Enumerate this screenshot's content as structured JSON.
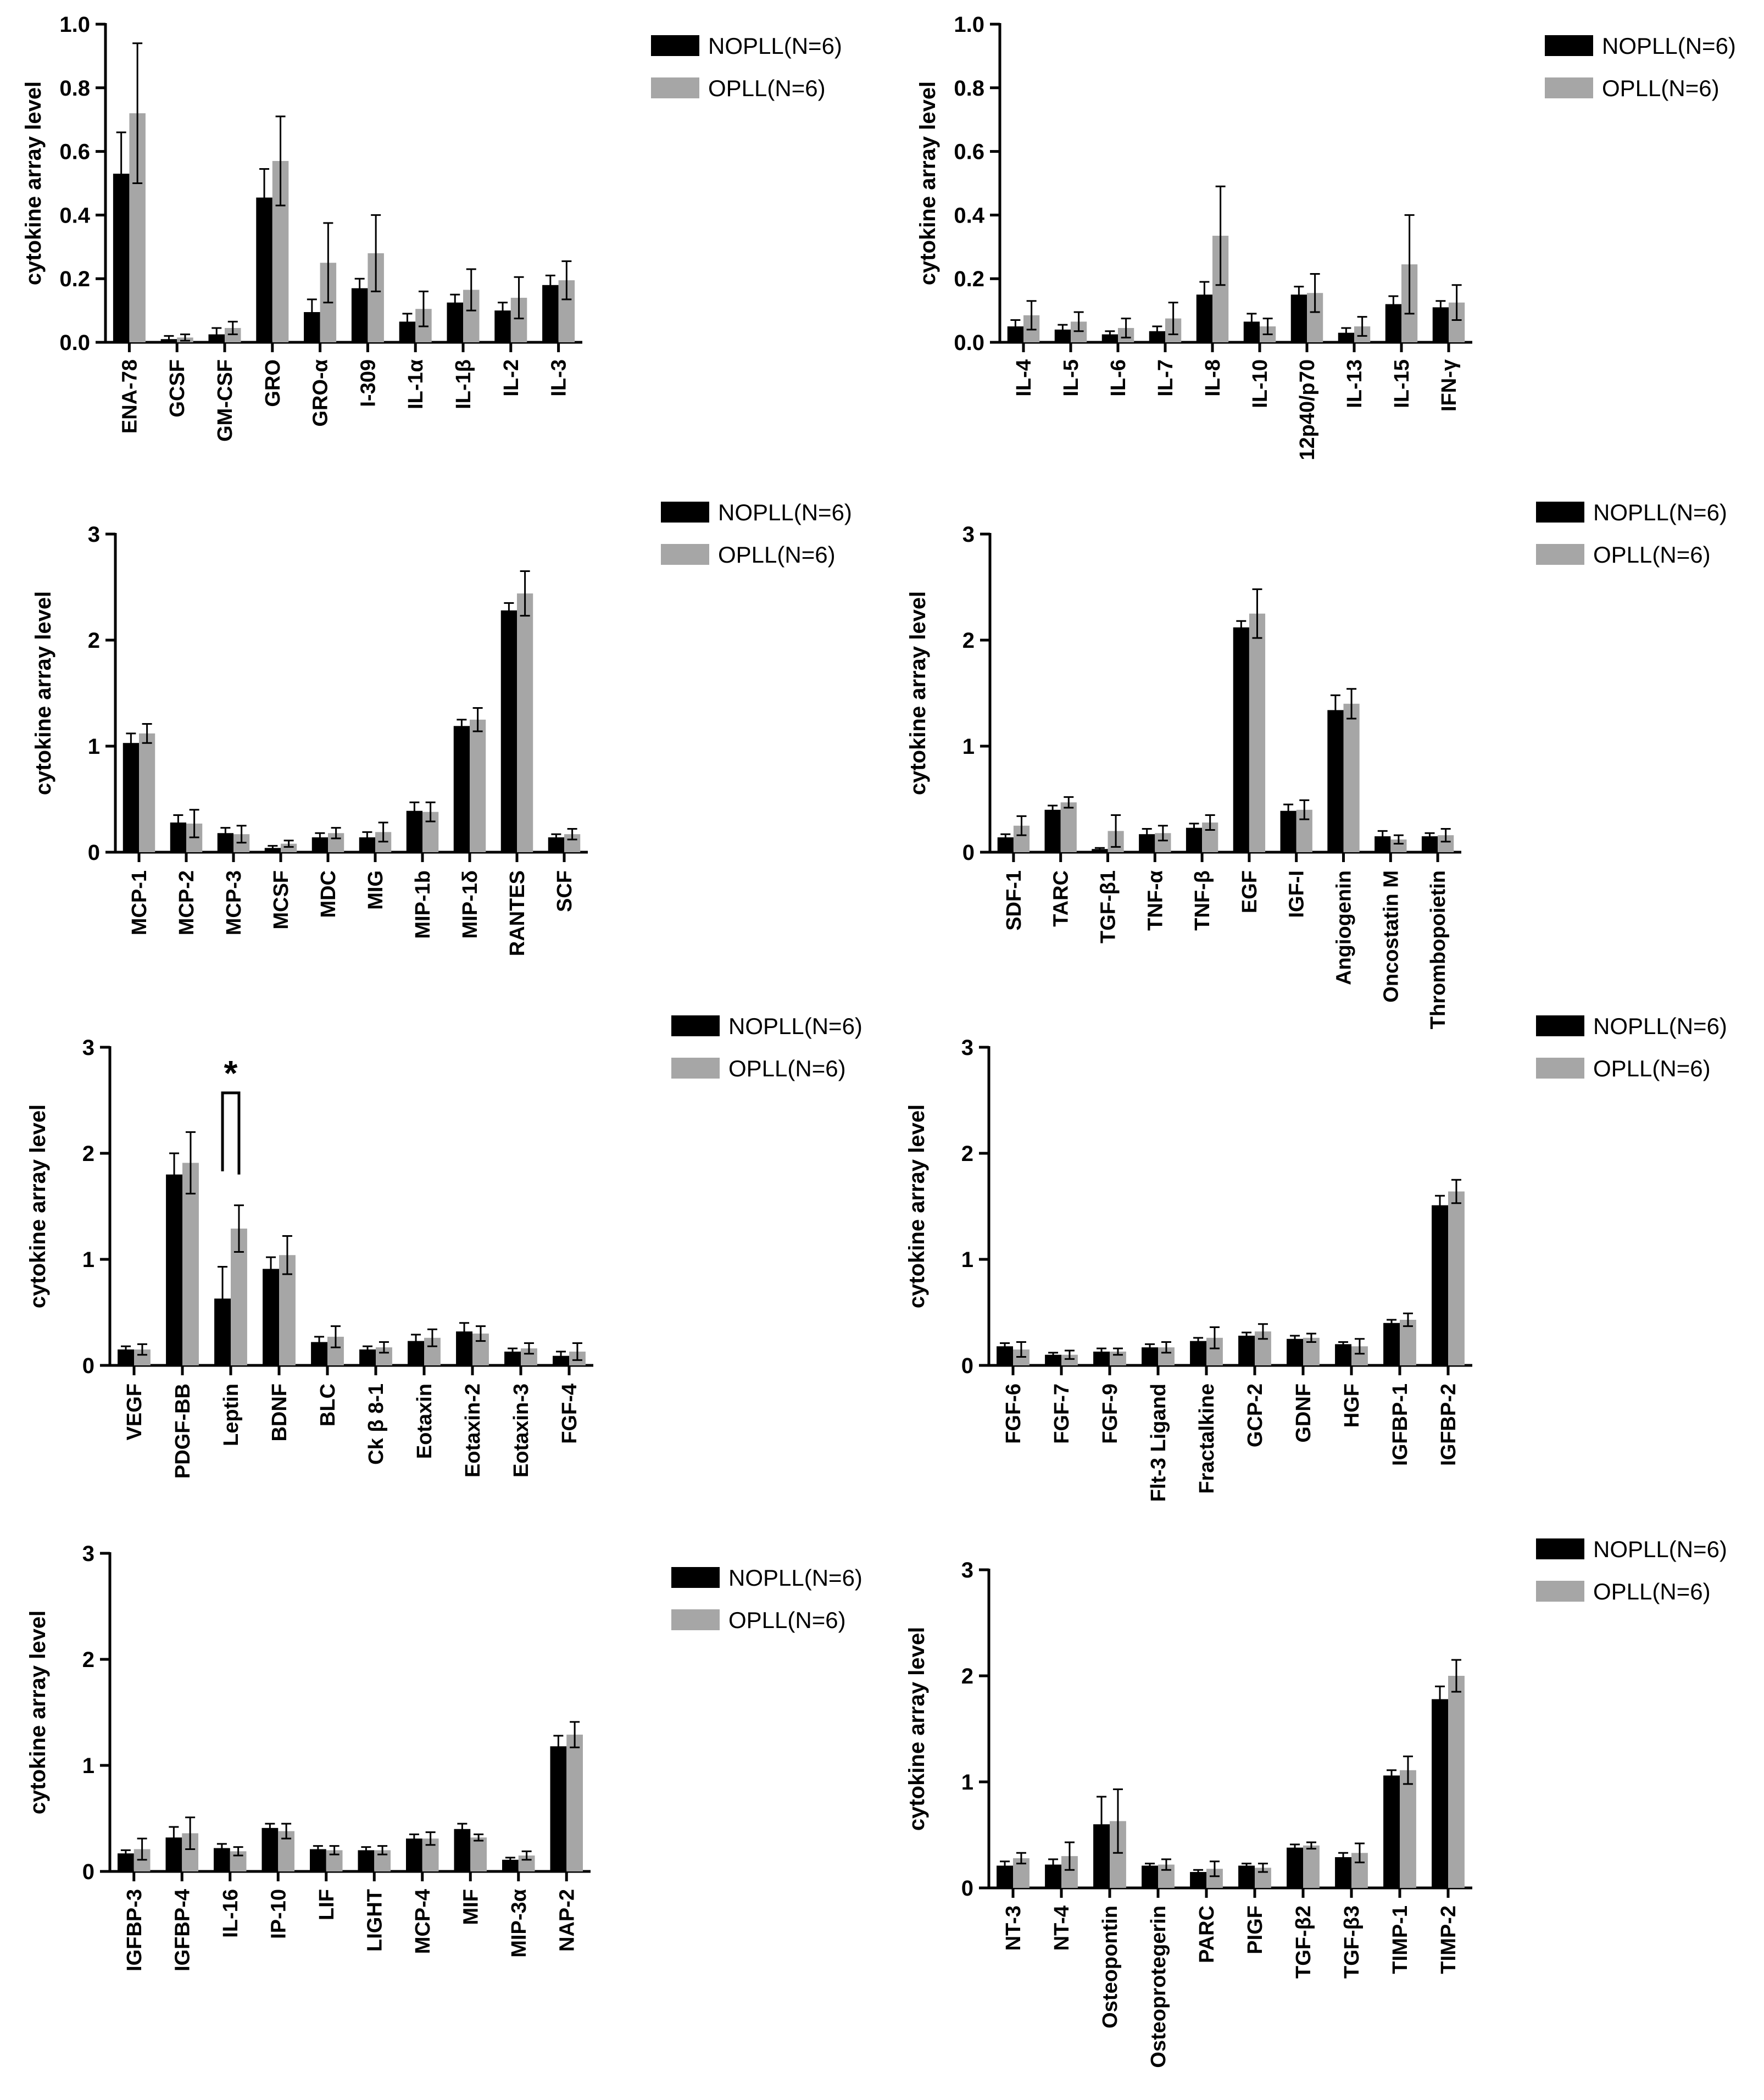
{
  "chart_data": [
    {
      "type": "bar",
      "ylabel": "cytokine array level",
      "ylim": [
        0,
        1.0
      ],
      "yticks": [
        "0.0",
        "0.2",
        "0.4",
        "0.6",
        "0.8",
        "1.0"
      ],
      "categories": [
        "ENA-78",
        "GCSF",
        "GM-CSF",
        "GRO",
        "GRO-α",
        "I-309",
        "IL-1α",
        "IL-1β",
        "IL-2",
        "IL-3"
      ],
      "series": [
        {
          "name": "NOPLL(N=6)",
          "color": "#000000",
          "values": [
            0.53,
            0.01,
            0.025,
            0.455,
            0.095,
            0.17,
            0.065,
            0.125,
            0.1,
            0.18
          ],
          "errors": [
            0.13,
            0.01,
            0.02,
            0.09,
            0.04,
            0.03,
            0.025,
            0.025,
            0.025,
            0.03
          ]
        },
        {
          "name": "OPLL(N=6)",
          "color": "#a6a6a6",
          "values": [
            0.72,
            0.015,
            0.045,
            0.57,
            0.25,
            0.28,
            0.105,
            0.165,
            0.14,
            0.195
          ],
          "errors": [
            0.22,
            0.01,
            0.02,
            0.14,
            0.125,
            0.12,
            0.055,
            0.065,
            0.065,
            0.06
          ]
        }
      ]
    },
    {
      "type": "bar",
      "ylabel": "cytokine array level",
      "ylim": [
        0,
        1.0
      ],
      "yticks": [
        "0.0",
        "0.2",
        "0.4",
        "0.6",
        "0.8",
        "1.0"
      ],
      "categories": [
        "IL-4",
        "IL-5",
        "IL-6",
        "IL-7",
        "IL-8",
        "IL-10",
        "12p40/p70",
        "IL-13",
        "IL-15",
        "IFN-γ"
      ],
      "series": [
        {
          "name": "NOPLL(N=6)",
          "color": "#000000",
          "values": [
            0.05,
            0.04,
            0.025,
            0.035,
            0.15,
            0.065,
            0.15,
            0.03,
            0.12,
            0.11
          ],
          "errors": [
            0.02,
            0.015,
            0.01,
            0.015,
            0.04,
            0.025,
            0.025,
            0.015,
            0.025,
            0.02
          ]
        },
        {
          "name": "OPLL(N=6)",
          "color": "#a6a6a6",
          "values": [
            0.085,
            0.065,
            0.045,
            0.075,
            0.335,
            0.05,
            0.155,
            0.05,
            0.245,
            0.125
          ],
          "errors": [
            0.045,
            0.03,
            0.03,
            0.05,
            0.155,
            0.025,
            0.06,
            0.03,
            0.155,
            0.055
          ]
        }
      ]
    },
    {
      "type": "bar",
      "ylabel": "cytokine array level",
      "ylim": [
        0,
        3
      ],
      "yticks": [
        "0",
        "1",
        "2",
        "3"
      ],
      "categories": [
        "MCP-1",
        "MCP-2",
        "MCP-3",
        "MCSF",
        "MDC",
        "MIG",
        "MIP-1b",
        "MIP-1δ",
        "RANTES",
        "SCF"
      ],
      "series": [
        {
          "name": "NOPLL(N=6)",
          "color": "#000000",
          "values": [
            1.03,
            0.28,
            0.18,
            0.04,
            0.14,
            0.14,
            0.39,
            1.19,
            2.28,
            0.14
          ],
          "errors": [
            0.09,
            0.07,
            0.05,
            0.02,
            0.04,
            0.05,
            0.08,
            0.06,
            0.07,
            0.03
          ]
        },
        {
          "name": "OPLL(N=6)",
          "color": "#a6a6a6",
          "values": [
            1.12,
            0.27,
            0.17,
            0.08,
            0.18,
            0.19,
            0.38,
            1.25,
            2.44,
            0.17
          ],
          "errors": [
            0.09,
            0.13,
            0.08,
            0.03,
            0.05,
            0.09,
            0.09,
            0.11,
            0.21,
            0.05
          ]
        }
      ]
    },
    {
      "type": "bar",
      "ylabel": "cytokine array level",
      "ylim": [
        0,
        3
      ],
      "yticks": [
        "0",
        "1",
        "2",
        "3"
      ],
      "categories": [
        "SDF-1",
        "TARC",
        "TGF-β1",
        "TNF-α",
        "TNF-β",
        "EGF",
        "IGF-I",
        "Angiogenin",
        "Oncostatin M",
        "Thrombopoietin"
      ],
      "series": [
        {
          "name": "NOPLL(N=6)",
          "color": "#000000",
          "values": [
            0.14,
            0.4,
            0.03,
            0.17,
            0.23,
            2.12,
            0.39,
            1.34,
            0.15,
            0.15
          ],
          "errors": [
            0.03,
            0.04,
            0.01,
            0.05,
            0.04,
            0.06,
            0.06,
            0.14,
            0.05,
            0.03
          ]
        },
        {
          "name": "OPLL(N=6)",
          "color": "#a6a6a6",
          "values": [
            0.25,
            0.47,
            0.2,
            0.18,
            0.28,
            2.25,
            0.4,
            1.4,
            0.12,
            0.16
          ],
          "errors": [
            0.09,
            0.05,
            0.15,
            0.07,
            0.07,
            0.23,
            0.09,
            0.14,
            0.04,
            0.06
          ]
        }
      ]
    },
    {
      "type": "bar",
      "ylabel": "cytokine array level",
      "ylim": [
        0,
        3
      ],
      "yticks": [
        "0",
        "1",
        "2",
        "3"
      ],
      "categories": [
        "VEGF",
        "PDGF-BB",
        "Leptin",
        "BDNF",
        "BLC",
        "Ck β 8-1",
        "Eotaxin",
        "Eotaxin-2",
        "Eotaxin-3",
        "FGF-4"
      ],
      "annotation": {
        "text": "*",
        "between": "Leptin"
      },
      "series": [
        {
          "name": "NOPLL(N=6)",
          "color": "#000000",
          "values": [
            0.15,
            1.8,
            0.63,
            0.91,
            0.22,
            0.15,
            0.23,
            0.32,
            0.13,
            0.09
          ],
          "errors": [
            0.03,
            0.2,
            0.3,
            0.11,
            0.05,
            0.03,
            0.06,
            0.08,
            0.03,
            0.04
          ]
        },
        {
          "name": "OPLL(N=6)",
          "color": "#a6a6a6",
          "values": [
            0.15,
            1.91,
            1.29,
            1.04,
            0.27,
            0.17,
            0.26,
            0.3,
            0.16,
            0.13
          ],
          "errors": [
            0.05,
            0.29,
            0.22,
            0.18,
            0.1,
            0.05,
            0.08,
            0.07,
            0.05,
            0.08
          ]
        }
      ]
    },
    {
      "type": "bar",
      "ylabel": "cytokine array level",
      "ylim": [
        0,
        3
      ],
      "yticks": [
        "0",
        "1",
        "2",
        "3"
      ],
      "categories": [
        "FGF-6",
        "FGF-7",
        "FGF-9",
        "Flt-3 Ligand",
        "Fractalkine",
        "GCP-2",
        "GDNF",
        "HGF",
        "IGFBP-1",
        "IGFBP-2"
      ],
      "series": [
        {
          "name": "NOPLL(N=6)",
          "color": "#000000",
          "values": [
            0.18,
            0.1,
            0.13,
            0.17,
            0.23,
            0.28,
            0.25,
            0.2,
            0.4,
            1.51
          ],
          "errors": [
            0.03,
            0.02,
            0.03,
            0.03,
            0.03,
            0.03,
            0.03,
            0.02,
            0.03,
            0.09
          ]
        },
        {
          "name": "OPLL(N=6)",
          "color": "#a6a6a6",
          "values": [
            0.15,
            0.1,
            0.13,
            0.17,
            0.26,
            0.32,
            0.26,
            0.18,
            0.43,
            1.64
          ],
          "errors": [
            0.07,
            0.04,
            0.03,
            0.05,
            0.1,
            0.07,
            0.04,
            0.07,
            0.06,
            0.11
          ]
        }
      ]
    },
    {
      "type": "bar",
      "ylabel": "cytokine array level",
      "ylim": [
        0,
        3
      ],
      "yticks": [
        "0",
        "1",
        "2",
        "3"
      ],
      "categories": [
        "IGFBP-3",
        "IGFBP-4",
        "IL-16",
        "IP-10",
        "LIF",
        "LIGHT",
        "MCP-4",
        "MIF",
        "MIP-3α",
        "NAP-2"
      ],
      "series": [
        {
          "name": "NOPLL(N=6)",
          "color": "#000000",
          "values": [
            0.17,
            0.32,
            0.22,
            0.41,
            0.21,
            0.2,
            0.31,
            0.4,
            0.11,
            1.18
          ],
          "errors": [
            0.03,
            0.1,
            0.04,
            0.04,
            0.03,
            0.03,
            0.04,
            0.05,
            0.02,
            0.1
          ]
        },
        {
          "name": "OPLL(N=6)",
          "color": "#a6a6a6",
          "values": [
            0.21,
            0.36,
            0.19,
            0.38,
            0.2,
            0.2,
            0.31,
            0.32,
            0.15,
            1.29
          ],
          "errors": [
            0.1,
            0.15,
            0.04,
            0.07,
            0.04,
            0.04,
            0.06,
            0.03,
            0.04,
            0.12
          ]
        }
      ]
    },
    {
      "type": "bar",
      "ylabel": "cytokine array level",
      "ylim": [
        0,
        3
      ],
      "yticks": [
        "0",
        "1",
        "2",
        "3"
      ],
      "categories": [
        "NT-3",
        "NT-4",
        "Osteopontin",
        "Osteoprotegerin",
        "PARC",
        "PIGF",
        "TGF-β2",
        "TGF-β3",
        "TIMP-1",
        "TIMP-2"
      ],
      "series": [
        {
          "name": "NOPLL(N=6)",
          "color": "#000000",
          "values": [
            0.21,
            0.22,
            0.6,
            0.21,
            0.15,
            0.21,
            0.38,
            0.29,
            1.06,
            1.78
          ],
          "errors": [
            0.04,
            0.05,
            0.26,
            0.02,
            0.02,
            0.02,
            0.03,
            0.04,
            0.05,
            0.12
          ]
        },
        {
          "name": "OPLL(N=6)",
          "color": "#a6a6a6",
          "values": [
            0.28,
            0.3,
            0.63,
            0.22,
            0.18,
            0.19,
            0.4,
            0.33,
            1.11,
            2.0
          ],
          "errors": [
            0.05,
            0.13,
            0.3,
            0.05,
            0.07,
            0.04,
            0.03,
            0.09,
            0.13,
            0.15
          ]
        }
      ]
    }
  ]
}
